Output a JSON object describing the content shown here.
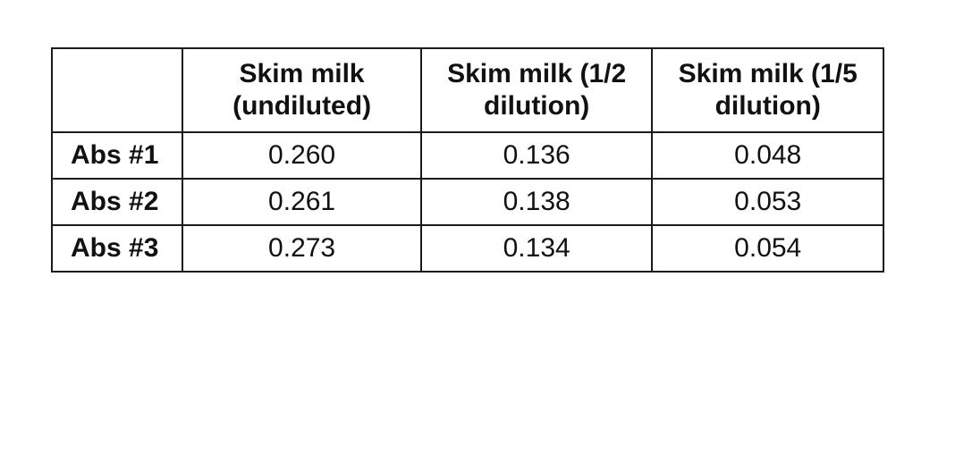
{
  "table": {
    "corner": "",
    "headers": [
      [
        "Skim milk",
        "(undiluted)"
      ],
      [
        "Skim milk (1/2",
        "dilution)"
      ],
      [
        "Skim milk (1/5",
        "dilution)"
      ]
    ],
    "rows": [
      {
        "label": "Abs #1",
        "values": [
          "0.260",
          "0.136",
          "0.048"
        ]
      },
      {
        "label": "Abs #2",
        "values": [
          "0.261",
          "0.138",
          "0.053"
        ]
      },
      {
        "label": "Abs #3",
        "values": [
          "0.273",
          "0.134",
          "0.054"
        ]
      }
    ]
  }
}
